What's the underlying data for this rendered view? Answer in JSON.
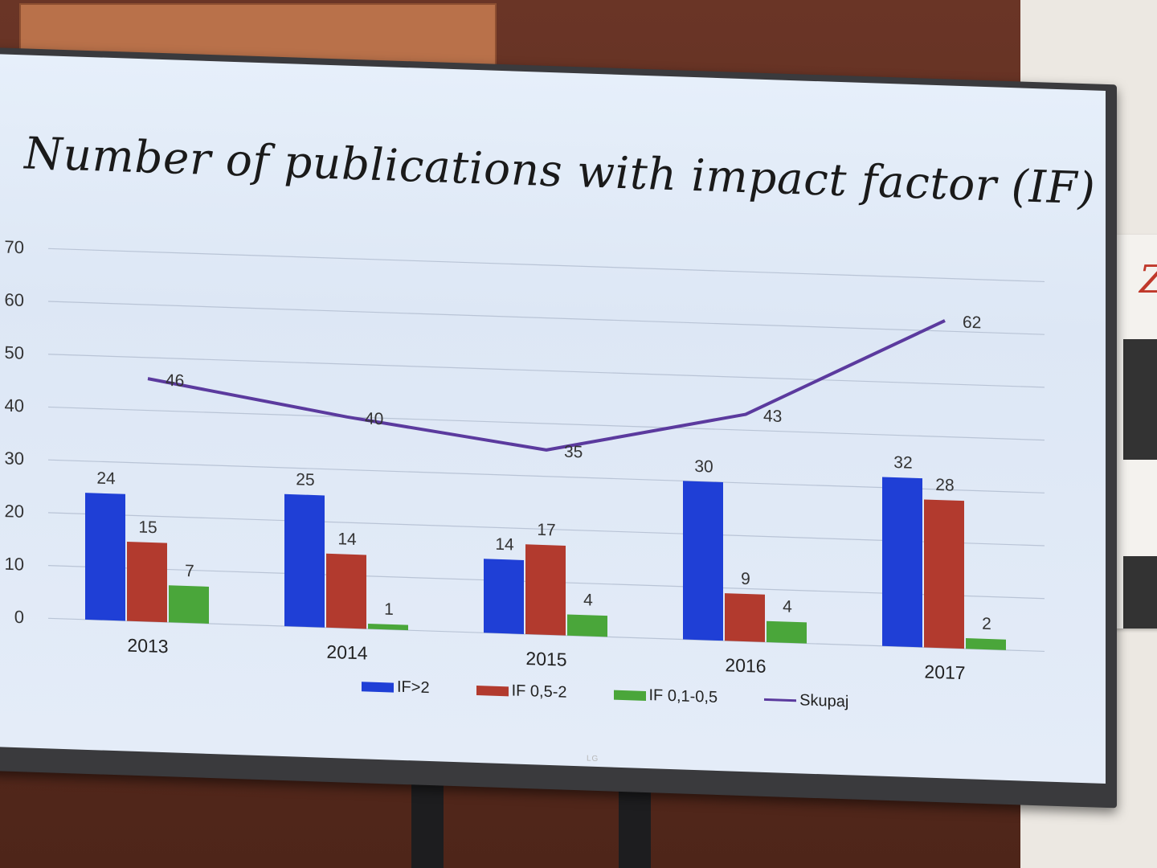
{
  "chart_data": {
    "type": "bar",
    "title": "Number of publications with impact factor (IF)",
    "categories": [
      "2013",
      "2014",
      "2015",
      "2016",
      "2017"
    ],
    "ylim": [
      0,
      70
    ],
    "yticks": [
      0,
      10,
      20,
      30,
      40,
      50,
      60,
      70
    ],
    "grid": true,
    "legend_position": "bottom",
    "series": [
      {
        "name": "IF>2",
        "kind": "bar",
        "color": "#1f3fd6",
        "values": [
          24,
          25,
          14,
          30,
          32
        ]
      },
      {
        "name": "IF 0,5-2",
        "kind": "bar",
        "color": "#b23a2e",
        "values": [
          15,
          14,
          17,
          9,
          28
        ]
      },
      {
        "name": "IF 0,1-0,5",
        "kind": "bar",
        "color": "#4aa63a",
        "values": [
          7,
          1,
          4,
          4,
          2
        ]
      },
      {
        "name": "Skupaj",
        "kind": "line",
        "color": "#5b3a9e",
        "values": [
          46,
          40,
          35,
          43,
          62
        ]
      }
    ]
  },
  "tv": {
    "brand": "LG"
  }
}
